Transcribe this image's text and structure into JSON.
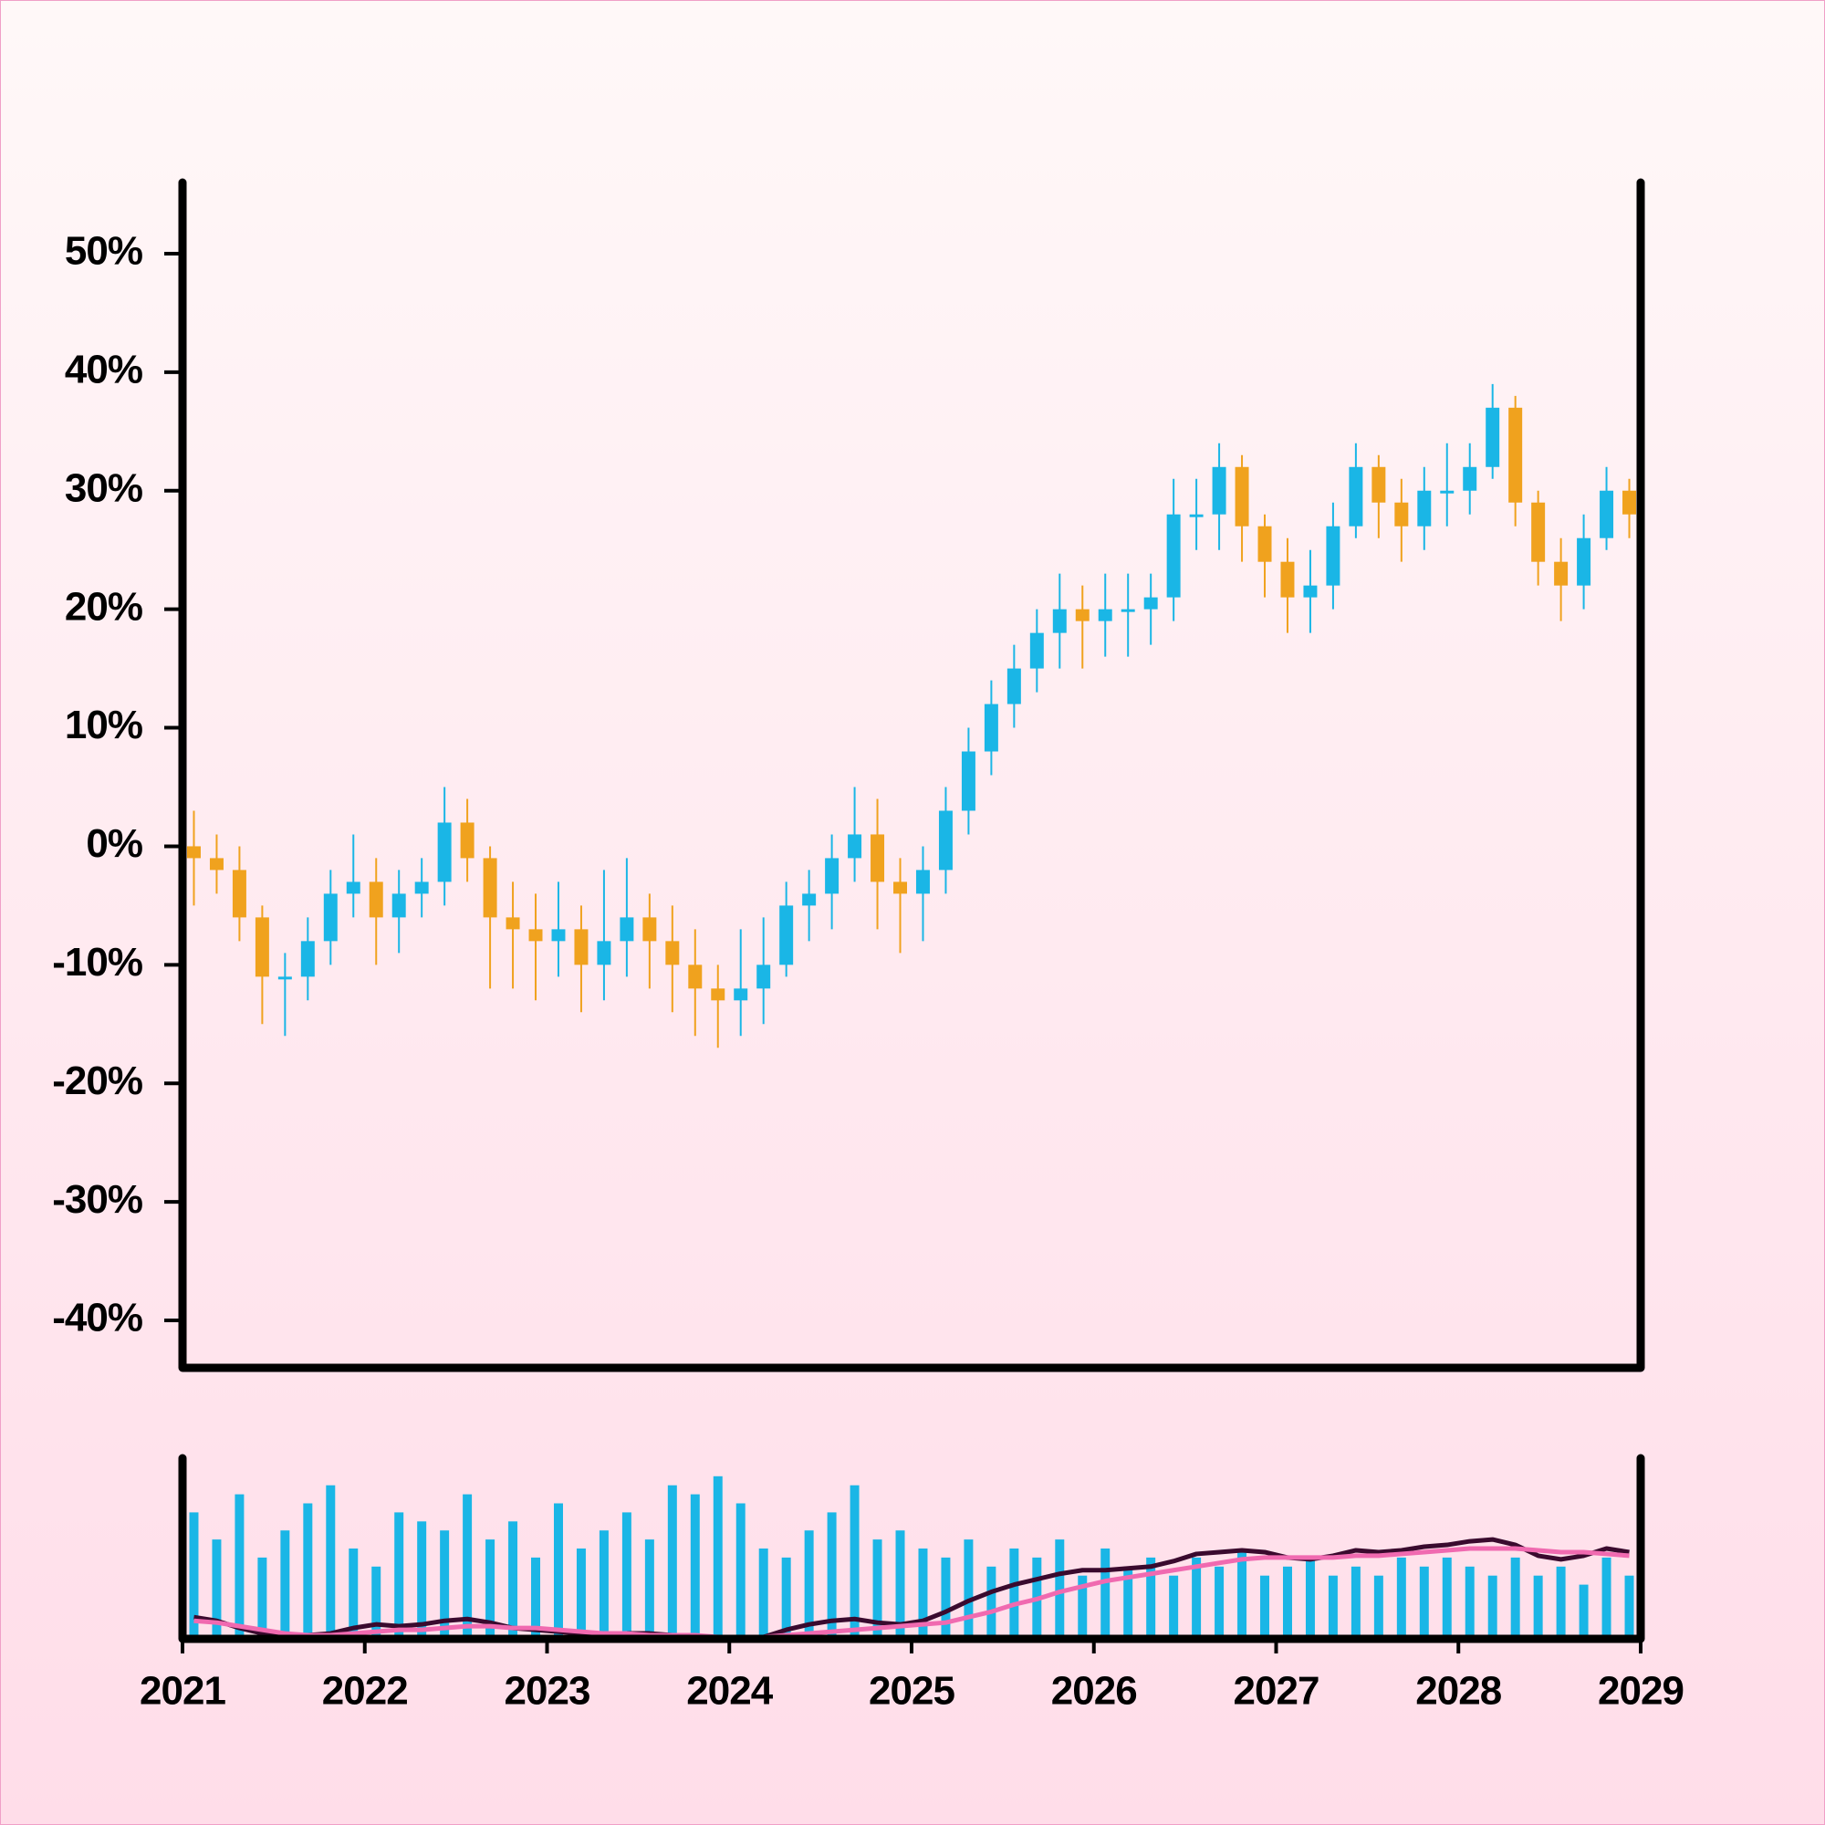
{
  "chart_data": {
    "type": "candlestick",
    "x": [
      2021.0625,
      2021.1875,
      2021.3125,
      2021.4375,
      2021.5625,
      2021.6875,
      2021.8125,
      2021.9375,
      2022.0625,
      2022.1875,
      2022.3125,
      2022.4375,
      2022.5625,
      2022.6875,
      2022.8125,
      2022.9375,
      2023.0625,
      2023.1875,
      2023.3125,
      2023.4375,
      2023.5625,
      2023.6875,
      2023.8125,
      2023.9375,
      2024.0625,
      2024.1875,
      2024.3125,
      2024.4375,
      2024.5625,
      2024.6875,
      2024.8125,
      2024.9375,
      2025.0625,
      2025.1875,
      2025.3125,
      2025.4375,
      2025.5625,
      2025.6875,
      2025.8125,
      2025.9375,
      2026.0625,
      2026.1875,
      2026.3125,
      2026.4375,
      2026.5625,
      2026.6875,
      2026.8125,
      2026.9375,
      2027.0625,
      2027.1875,
      2027.3125,
      2027.4375,
      2027.5625,
      2027.6875,
      2027.8125,
      2027.9375,
      2028.0625,
      2028.1875,
      2028.3125,
      2028.4375,
      2028.5625,
      2028.6875,
      2028.8125,
      2028.9375
    ],
    "open": [
      0,
      -1,
      -2,
      -6,
      -11,
      -11,
      -8,
      -4,
      -3,
      -6,
      -4,
      -3,
      2,
      -1,
      -6,
      -7,
      -8,
      -7,
      -10,
      -8,
      -6,
      -8,
      -10,
      -12,
      -13,
      -12,
      -10,
      -5,
      -4,
      -1,
      1,
      -3,
      -4,
      -2,
      3,
      8,
      12,
      15,
      18,
      20,
      19,
      20,
      20,
      21,
      28,
      28,
      32,
      27,
      24,
      21,
      22,
      27,
      32,
      29,
      27,
      30,
      30,
      32,
      37,
      29,
      24,
      22,
      26,
      30
    ],
    "high": [
      3,
      1,
      0,
      -5,
      -9,
      -6,
      -2,
      1,
      -1,
      -2,
      -1,
      5,
      4,
      0,
      -3,
      -4,
      -3,
      -5,
      -2,
      -1,
      -4,
      -5,
      -7,
      -10,
      -7,
      -6,
      -3,
      -2,
      1,
      5,
      4,
      -1,
      0,
      5,
      10,
      14,
      17,
      20,
      23,
      22,
      23,
      23,
      23,
      31,
      31,
      34,
      33,
      28,
      26,
      25,
      29,
      34,
      33,
      31,
      32,
      34,
      34,
      39,
      38,
      30,
      26,
      28,
      32,
      31
    ],
    "low": [
      -5,
      -4,
      -8,
      -15,
      -16,
      -13,
      -10,
      -6,
      -10,
      -9,
      -6,
      -5,
      -3,
      -12,
      -12,
      -13,
      -11,
      -14,
      -13,
      -11,
      -12,
      -14,
      -16,
      -17,
      -16,
      -15,
      -11,
      -8,
      -7,
      -3,
      -7,
      -9,
      -8,
      -4,
      1,
      6,
      10,
      13,
      15,
      15,
      16,
      16,
      17,
      19,
      25,
      25,
      24,
      21,
      18,
      18,
      20,
      26,
      26,
      24,
      25,
      27,
      28,
      31,
      27,
      22,
      19,
      20,
      25,
      26
    ],
    "close": [
      -1,
      -2,
      -6,
      -11,
      -11,
      -8,
      -4,
      -3,
      -6,
      -4,
      -3,
      2,
      -1,
      -6,
      -7,
      -8,
      -7,
      -10,
      -8,
      -6,
      -8,
      -10,
      -12,
      -13,
      -12,
      -10,
      -5,
      -4,
      -1,
      1,
      -3,
      -4,
      -2,
      3,
      8,
      12,
      15,
      18,
      20,
      19,
      20,
      20,
      21,
      28,
      28,
      32,
      27,
      24,
      21,
      22,
      27,
      32,
      29,
      27,
      30,
      30,
      32,
      37,
      29,
      24,
      22,
      26,
      30,
      28
    ],
    "up_color": "#1ab6e6",
    "down_color": "#f0a21e",
    "xlim": [
      2021,
      2029
    ],
    "xticks": [
      2021,
      2022,
      2023,
      2024,
      2025,
      2026,
      2027,
      2028,
      2029
    ],
    "ylim": [
      -44,
      56
    ],
    "yticks": [
      {
        "value": 50,
        "label": "50%"
      },
      {
        "value": 40,
        "label": "40%"
      },
      {
        "value": 30,
        "label": "30%"
      },
      {
        "value": 20,
        "label": "20%"
      },
      {
        "value": 10,
        "label": "10%"
      },
      {
        "value": 0,
        "label": "0%"
      },
      {
        "value": -10,
        "label": "-10%"
      },
      {
        "value": -20,
        "label": "-20%"
      },
      {
        "value": -30,
        "label": "-30%"
      },
      {
        "value": -40,
        "label": "-40%"
      }
    ],
    "volume": {
      "color": "#1ab6e6",
      "ylim": [
        0,
        100
      ],
      "values": [
        70,
        55,
        80,
        45,
        60,
        75,
        85,
        50,
        40,
        70,
        65,
        60,
        80,
        55,
        65,
        45,
        75,
        50,
        60,
        70,
        55,
        85,
        80,
        90,
        75,
        50,
        45,
        60,
        70,
        85,
        55,
        60,
        50,
        45,
        55,
        40,
        50,
        45,
        55,
        35,
        50,
        40,
        45,
        35,
        45,
        40,
        50,
        35,
        40,
        45,
        35,
        40,
        35,
        45,
        40,
        45,
        40,
        35,
        45,
        35,
        40,
        30,
        45,
        35
      ],
      "lines": [
        {
          "color": "#3a0a2e",
          "values": [
            12,
            10,
            6,
            3,
            2,
            2,
            3,
            6,
            8,
            7,
            8,
            10,
            11,
            9,
            6,
            5,
            4,
            3,
            2,
            3,
            3,
            2,
            1,
            0,
            0,
            1,
            5,
            8,
            10,
            11,
            9,
            8,
            10,
            15,
            21,
            26,
            30,
            33,
            36,
            38,
            38,
            39,
            40,
            43,
            47,
            48,
            49,
            48,
            45,
            44,
            46,
            49,
            48,
            49,
            51,
            52,
            54,
            55,
            52,
            46,
            44,
            46,
            50,
            48
          ]
        },
        {
          "color": "#f06ab0",
          "values": [
            10,
            9,
            7,
            5,
            3,
            2,
            2,
            3,
            4,
            5,
            5,
            6,
            7,
            7,
            6,
            6,
            5,
            4,
            3,
            3,
            2,
            2,
            2,
            1,
            1,
            1,
            2,
            3,
            4,
            5,
            6,
            7,
            8,
            9,
            12,
            15,
            19,
            22,
            26,
            29,
            32,
            34,
            36,
            38,
            40,
            42,
            44,
            45,
            45,
            45,
            45,
            46,
            46,
            47,
            48,
            49,
            50,
            50,
            50,
            49,
            48,
            48,
            47,
            46
          ]
        }
      ]
    }
  }
}
